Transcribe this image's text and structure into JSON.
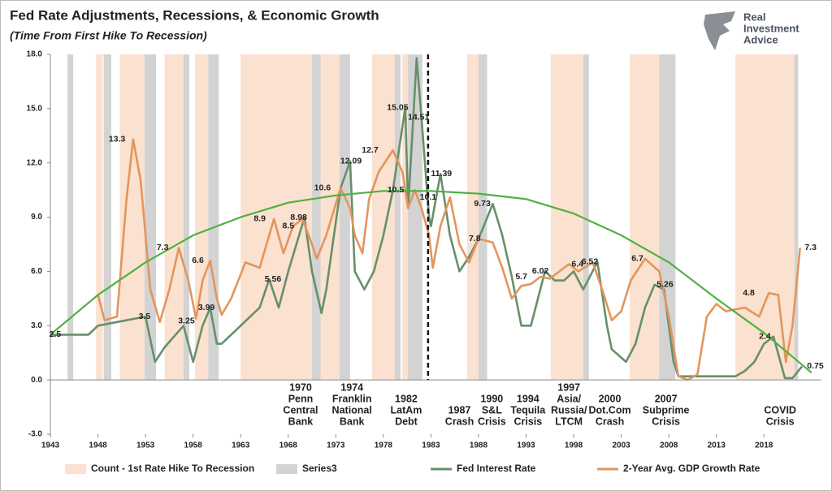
{
  "chart_data": {
    "type": "line",
    "title": "Fed Rate Adjustments, Recessions, & Economic Growth",
    "subtitle": "(Time From First Hike To Recession)",
    "brand": [
      "Real",
      "Investment",
      "Advice"
    ],
    "xlim": [
      1943,
      2024
    ],
    "ylim": [
      -3,
      18
    ],
    "xticks": [
      1943,
      1948,
      1953,
      1958,
      1963,
      1968,
      1973,
      1978,
      1983,
      1988,
      1993,
      1998,
      2003,
      2008,
      2013,
      2018
    ],
    "yticks": [
      {
        "value": -3,
        "label": "-3.0"
      },
      {
        "value": 0,
        "label": "0.0"
      },
      {
        "value": 3,
        "label": "3.0"
      },
      {
        "value": 6,
        "label": "6.0"
      },
      {
        "value": 9,
        "label": "9.0"
      },
      {
        "value": 12,
        "label": "12.0"
      },
      {
        "value": 15,
        "label": "15.0"
      },
      {
        "value": 18,
        "label": "18.0"
      }
    ],
    "bands": [
      {
        "name": "Count - 1st Rate Hike To Recession",
        "color": "#fbe1cf",
        "spans": [
          [
            1947.8,
            1948.5
          ],
          [
            1950.3,
            1952.9
          ],
          [
            1955.0,
            1957.0
          ],
          [
            1958.2,
            1959.6
          ],
          [
            1963.0,
            1970.5
          ],
          [
            1971.0,
            1973.4
          ],
          [
            1976.8,
            1979.2
          ],
          [
            1980.0,
            1980.7
          ],
          [
            1986.8,
            1988.0
          ],
          [
            1995.6,
            1999.0
          ],
          [
            2003.9,
            2007.0
          ],
          [
            2015.0,
            2021.2
          ]
        ]
      },
      {
        "name": "Series3",
        "color": "#d3d3d3",
        "spans": [
          [
            1944.8,
            1945.4
          ],
          [
            1948.6,
            1949.4
          ],
          [
            1952.9,
            1954.1
          ],
          [
            1957.0,
            1957.6
          ],
          [
            1959.6,
            1960.7
          ],
          [
            1970.5,
            1971.4
          ],
          [
            1973.4,
            1974.5
          ],
          [
            1979.2,
            1979.8
          ],
          [
            1980.6,
            1982.1
          ],
          [
            1988.0,
            1988.9
          ],
          [
            1999.0,
            1999.6
          ],
          [
            2007.0,
            2008.7
          ],
          [
            2021.2,
            2021.6
          ]
        ]
      }
    ],
    "series": [
      {
        "name": "Fed Interest Rate",
        "color": "#66906a",
        "x": [
          1943,
          1947,
          1948,
          1950,
          1953,
          1954,
          1955,
          1957,
          1958,
          1959,
          1959.8,
          1960.5,
          1961,
          1963,
          1965,
          1966,
          1967,
          1968,
          1969.7,
          1970.5,
          1971.5,
          1972,
          1973.5,
          1974.5,
          1975,
          1976,
          1977,
          1978,
          1979,
          1980.3,
          1980.6,
          1981.5,
          1982,
          1982.8,
          1983,
          1984,
          1985,
          1986,
          1987,
          1988,
          1989.5,
          1990.5,
          1991.5,
          1992.5,
          1993.5,
          1995,
          1996,
          1997,
          1998,
          1999,
          2000.5,
          2001.5,
          2002,
          2003.5,
          2004.5,
          2005.5,
          2006.5,
          2007.5,
          2008.5,
          2009,
          2015,
          2016,
          2017,
          2018,
          2019,
          2020.2,
          2021,
          2022
        ],
        "values": [
          2.5,
          2.5,
          3.0,
          3.2,
          3.5,
          1.0,
          1.8,
          3.0,
          1.0,
          3.0,
          3.99,
          2.0,
          2.0,
          3.0,
          4.0,
          5.56,
          4.0,
          6.0,
          8.98,
          6.0,
          3.7,
          5.0,
          10.6,
          12.09,
          6.0,
          5.0,
          6.0,
          8.0,
          10.5,
          15.05,
          9.5,
          17.8,
          14.51,
          9.0,
          8.5,
          11.39,
          8.0,
          6.0,
          6.8,
          7.8,
          9.73,
          8.0,
          5.7,
          3.0,
          3.0,
          6.02,
          5.5,
          5.5,
          6.0,
          5.0,
          6.52,
          3.0,
          1.7,
          1.0,
          2.0,
          4.0,
          5.26,
          5.0,
          1.0,
          0.2,
          0.2,
          0.5,
          1.0,
          2.0,
          2.4,
          0.1,
          0.1,
          0.75
        ]
      },
      {
        "name": "2-Year Avg. GDP Growth Rate",
        "color": "#e3955c",
        "x": [
          1948,
          1948.7,
          1950,
          1951,
          1951.7,
          1952.5,
          1953.5,
          1954.5,
          1955.5,
          1956.5,
          1957.5,
          1958.3,
          1959,
          1959.8,
          1960.5,
          1961,
          1962,
          1963.5,
          1965,
          1966.5,
          1967.5,
          1968.5,
          1969.5,
          1970.5,
          1971,
          1972,
          1973.5,
          1974.5,
          1975,
          1975.8,
          1976.5,
          1977.5,
          1979,
          1980,
          1980.6,
          1981.3,
          1982,
          1982.8,
          1983.2,
          1984,
          1985,
          1986,
          1987,
          1988,
          1989.5,
          1990.5,
          1991.5,
          1992.5,
          1993.5,
          1994.5,
          1995.5,
          1996.5,
          1997.5,
          1998.5,
          2000,
          2001,
          2002,
          2003,
          2004,
          2005.5,
          2007,
          2008,
          2009,
          2010,
          2011,
          2012,
          2013,
          2014,
          2016,
          2017.5,
          2018.5,
          2019.5,
          2020.3,
          2021,
          2021.8
        ],
        "values": [
          4.7,
          3.3,
          3.5,
          10.0,
          13.3,
          11.0,
          5.0,
          3.2,
          5.0,
          7.3,
          5.5,
          3.4,
          5.5,
          6.6,
          4.5,
          3.6,
          4.5,
          6.5,
          6.2,
          8.9,
          7.0,
          8.5,
          8.9,
          7.5,
          6.7,
          8.0,
          10.6,
          9.5,
          8.0,
          7.0,
          10.0,
          11.5,
          12.7,
          11.5,
          9.5,
          10.5,
          9.5,
          8.0,
          6.2,
          8.5,
          10.1,
          7.5,
          6.5,
          7.8,
          7.6,
          6.2,
          4.5,
          5.2,
          5.3,
          5.7,
          5.6,
          6.0,
          6.4,
          6.0,
          6.5,
          5.0,
          3.3,
          3.8,
          5.5,
          6.7,
          6.0,
          3.5,
          0.2,
          0.0,
          0.3,
          3.5,
          4.2,
          3.8,
          4.0,
          3.5,
          4.8,
          4.7,
          1.0,
          3.0,
          7.3
        ]
      }
    ],
    "trend": {
      "color": "#4fb043",
      "x": [
        1943,
        1948,
        1953,
        1958,
        1963,
        1968,
        1973,
        1978,
        1983,
        1988,
        1993,
        1998,
        2003,
        2008,
        2013,
        2018,
        2023
      ],
      "values": [
        2.5,
        4.7,
        6.5,
        8.0,
        9.0,
        9.8,
        10.2,
        10.45,
        10.45,
        10.3,
        10.0,
        9.2,
        8.0,
        6.5,
        4.5,
        2.6,
        0.4
      ]
    },
    "marker_x": 1982.7,
    "point_labels": [
      {
        "x": 1943.5,
        "value": 2.5
      },
      {
        "x": 1950.0,
        "value": 13.3
      },
      {
        "x": 1952.9,
        "value": 3.5
      },
      {
        "x": 1954.8,
        "value": 7.3
      },
      {
        "x": 1957.3,
        "value": 3.25
      },
      {
        "x": 1958.5,
        "value": 6.6
      },
      {
        "x": 1959.4,
        "value": 3.99
      },
      {
        "x": 1965.0,
        "value": 8.9
      },
      {
        "x": 1966.4,
        "value": 5.56
      },
      {
        "x": 1968.0,
        "value": 8.5
      },
      {
        "x": 1969.1,
        "value": 8.98
      },
      {
        "x": 1971.6,
        "value": 10.6
      },
      {
        "x": 1974.6,
        "value": 12.09
      },
      {
        "x": 1976.6,
        "value": 12.7
      },
      {
        "x": 1979.5,
        "value": 15.05
      },
      {
        "x": 1981.7,
        "value": 14.51
      },
      {
        "x": 1979.3,
        "value": 10.5
      },
      {
        "x": 1982.7,
        "value": 10.1
      },
      {
        "x": 1984.1,
        "value": 11.39
      },
      {
        "x": 1988.4,
        "value": 9.73
      },
      {
        "x": 1987.6,
        "value": 7.8
      },
      {
        "x": 1992.5,
        "value": 5.7
      },
      {
        "x": 1994.5,
        "value": 6.02
      },
      {
        "x": 1998.4,
        "value": 6.4
      },
      {
        "x": 1999.7,
        "value": 6.52
      },
      {
        "x": 2004.7,
        "value": 6.7
      },
      {
        "x": 2007.6,
        "value": 5.26
      },
      {
        "x": 2016.4,
        "value": 4.8
      },
      {
        "x": 2018.1,
        "value": 2.4
      },
      {
        "x": 2022.9,
        "value": 7.3
      },
      {
        "x": 2023.4,
        "value": 0.75
      }
    ],
    "events": [
      {
        "x": 1969.3,
        "lines": [
          "1970",
          "Penn",
          "Central",
          "Bank"
        ]
      },
      {
        "x": 1974.7,
        "lines": [
          "1974",
          "Franklin",
          "National",
          "Bank"
        ]
      },
      {
        "x": 1980.4,
        "lines": [
          "1982",
          "LatAm",
          "Debt"
        ]
      },
      {
        "x": 1986.0,
        "lines": [
          "1987",
          "Crash"
        ]
      },
      {
        "x": 1989.4,
        "lines": [
          "1990",
          "S&L",
          "Crisis"
        ]
      },
      {
        "x": 1993.2,
        "lines": [
          "1994",
          "Tequila",
          "Crisis"
        ]
      },
      {
        "x": 1997.5,
        "lines": [
          "1997",
          "Asia/",
          "Russia/",
          "LTCM"
        ]
      },
      {
        "x": 2001.8,
        "lines": [
          "2000",
          "Dot.Com",
          "Crash"
        ]
      },
      {
        "x": 2007.7,
        "lines": [
          "2007",
          "Subprime",
          "Crisis"
        ]
      },
      {
        "x": 2019.7,
        "lines": [
          "COVID",
          "Crisis"
        ]
      }
    ]
  }
}
